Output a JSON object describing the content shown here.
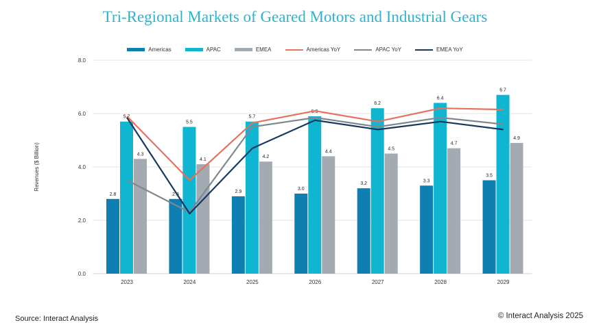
{
  "title": "Tri-Regional Markets of Geared Motors and Industrial Gears",
  "source": "Source: Interact Analysis",
  "copyright": "© Interact Analysis 2025",
  "colors": {
    "americas": "#0e7fb0",
    "apac": "#10b5d2",
    "emea": "#a4aab1",
    "americas_yoy": "#e4725d",
    "apac_yoy": "#7f8890",
    "emea_yoy": "#17385f",
    "grid": "#e3e3e3",
    "axis": "#cfcfcf"
  },
  "legend": [
    {
      "label": "Americas",
      "kind": "box",
      "color": "#0e7fb0"
    },
    {
      "label": "APAC",
      "kind": "box",
      "color": "#10b5d2"
    },
    {
      "label": "EMEA",
      "kind": "box",
      "color": "#a4aab1"
    },
    {
      "label": "Americas YoY",
      "kind": "line",
      "color": "#e4725d"
    },
    {
      "label": "APAC YoY",
      "kind": "line",
      "color": "#7f8890"
    },
    {
      "label": "EMEA YoY",
      "kind": "line",
      "color": "#17385f"
    }
  ],
  "chart_data": {
    "type": "bar",
    "title": "Tri-Regional Markets of Geared Motors and Industrial Gears",
    "xlabel": "",
    "ylabel": "Revenues ($ Billion)",
    "ylim": [
      0,
      8
    ],
    "yticks": [
      "0.0",
      "2.0",
      "4.0",
      "6.0",
      "8.0"
    ],
    "grid": true,
    "legend_position": "top",
    "categories": [
      "2023",
      "2024",
      "2025",
      "2026",
      "2027",
      "2028",
      "2029"
    ],
    "series": [
      {
        "name": "Americas",
        "color": "#0e7fb0",
        "values": [
          2.8,
          2.8,
          2.9,
          3.0,
          3.2,
          3.3,
          3.5
        ],
        "labels": [
          "2.8",
          "2.8",
          "2.9",
          "3.0",
          "3.2",
          "3.3",
          "3.5"
        ]
      },
      {
        "name": "APAC",
        "color": "#10b5d2",
        "values": [
          5.7,
          5.5,
          5.7,
          5.9,
          6.2,
          6.4,
          6.7
        ],
        "labels": [
          "5.7",
          "5.5",
          "5.7",
          "5.9",
          "6.2",
          "6.4",
          "6.7"
        ]
      },
      {
        "name": "EMEA",
        "color": "#a4aab1",
        "values": [
          4.3,
          4.1,
          4.2,
          4.4,
          4.5,
          4.7,
          4.9
        ],
        "labels": [
          "4.3",
          "4.1",
          "4.2",
          "4.4",
          "4.5",
          "4.7",
          "4.9"
        ]
      }
    ],
    "lines": [
      {
        "name": "Americas YoY",
        "color": "#e4725d",
        "values": [
          5.9,
          3.5,
          5.65,
          6.1,
          5.7,
          6.2,
          6.15
        ]
      },
      {
        "name": "APAC YoY",
        "color": "#7f8890",
        "values": [
          3.5,
          2.3,
          5.5,
          5.85,
          5.5,
          5.85,
          5.6
        ]
      },
      {
        "name": "EMEA YoY",
        "color": "#17385f",
        "values": [
          5.85,
          2.25,
          4.7,
          5.75,
          5.4,
          5.7,
          5.4
        ]
      }
    ]
  }
}
